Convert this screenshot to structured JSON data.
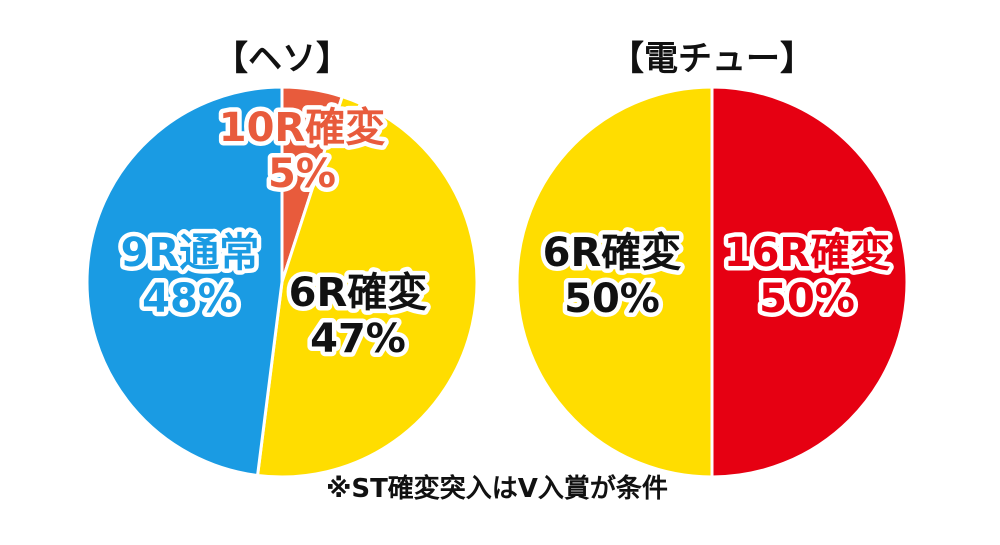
{
  "chart_data": [
    {
      "type": "pie",
      "title": "【ヘソ】",
      "start_angle_deg": 0,
      "direction": "clockwise",
      "slices": [
        {
          "label": "10R確変",
          "value": 5,
          "value_label": "5%",
          "color": "#E85B3C",
          "text_color": "#E85B3C"
        },
        {
          "label": "6R確変",
          "value": 47,
          "value_label": "47%",
          "color": "#FFDD00",
          "text_color": "#111111"
        },
        {
          "label": "9R通常",
          "value": 48,
          "value_label": "48%",
          "color": "#1A9BE3",
          "text_color": "#1A9BE3"
        }
      ]
    },
    {
      "type": "pie",
      "title": "【電チュー】",
      "start_angle_deg": 0,
      "direction": "clockwise",
      "slices": [
        {
          "label": "16R確変",
          "value": 50,
          "value_label": "50%",
          "color": "#E60012",
          "text_color": "#E60012"
        },
        {
          "label": "6R確変",
          "value": 50,
          "value_label": "50%",
          "color": "#FFDD00",
          "text_color": "#111111"
        }
      ]
    }
  ],
  "footnote": "※ST確変突入はV入賞が条件"
}
